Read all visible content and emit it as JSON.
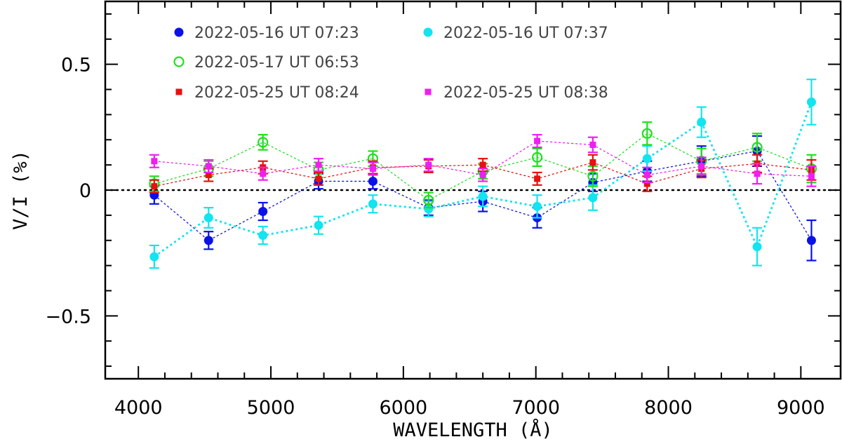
{
  "chart_data": {
    "type": "scatter",
    "xlabel": "WAVELENGTH (Å)",
    "ylabel": "V/I (%)",
    "xlim": [
      3750,
      9300
    ],
    "ylim": [
      -0.75,
      0.75
    ],
    "x_ticks": [
      4000,
      5000,
      6000,
      7000,
      8000,
      9000
    ],
    "y_ticks": [
      -0.5,
      0,
      0.5
    ],
    "y_tick_labels": [
      "−0.5",
      "0",
      "0.5"
    ],
    "zero_line": true,
    "x": [
      4120,
      4530,
      4940,
      5360,
      5770,
      6190,
      6600,
      7010,
      7430,
      7840,
      8250,
      8670,
      9080
    ],
    "series": [
      {
        "name": "2022-05-16 UT 07:23",
        "color": "#0a12e8",
        "marker": "filled-circle",
        "y": [
          -0.02,
          -0.2,
          -0.085,
          0.035,
          0.035,
          -0.07,
          -0.045,
          -0.11,
          0.03,
          0.075,
          0.115,
          0.155,
          -0.2
        ],
        "err": [
          0.035,
          0.035,
          0.035,
          0.03,
          0.03,
          0.03,
          0.04,
          0.04,
          0.035,
          0.04,
          0.06,
          0.06,
          0.08
        ]
      },
      {
        "name": "2022-05-16 UT 07:37",
        "color": "#12e4f0",
        "marker": "filled-circle",
        "y": [
          -0.265,
          -0.11,
          -0.18,
          -0.14,
          -0.055,
          -0.075,
          -0.025,
          -0.065,
          -0.03,
          0.125,
          0.27,
          -0.225,
          0.35
        ],
        "err": [
          0.045,
          0.04,
          0.035,
          0.035,
          0.035,
          0.03,
          0.04,
          0.045,
          0.05,
          0.05,
          0.06,
          0.075,
          0.09
        ]
      },
      {
        "name": "2022-05-17 UT 06:53",
        "color": "#1ee01e",
        "marker": "open-circle",
        "y": [
          0.025,
          0.085,
          0.19,
          0.08,
          0.125,
          -0.04,
          0.075,
          0.13,
          0.055,
          0.225,
          0.115,
          0.17,
          0.085
        ],
        "err": [
          0.03,
          0.03,
          0.03,
          0.03,
          0.03,
          0.03,
          0.03,
          0.035,
          0.04,
          0.045,
          0.05,
          0.055,
          0.055
        ]
      },
      {
        "name": "2022-05-25 UT 08:24",
        "color": "#e81010",
        "marker": "filled-square",
        "y": [
          0.015,
          0.06,
          0.09,
          0.045,
          0.09,
          0.095,
          0.1,
          0.045,
          0.11,
          0.025,
          0.085,
          0.105,
          0.08
        ],
        "err": [
          0.025,
          0.025,
          0.025,
          0.025,
          0.025,
          0.025,
          0.025,
          0.025,
          0.03,
          0.03,
          0.035,
          0.035,
          0.04
        ]
      },
      {
        "name": "2022-05-25 UT 08:38",
        "color": "#f01ef0",
        "marker": "filled-square",
        "y": [
          0.115,
          0.095,
          0.065,
          0.1,
          0.085,
          0.1,
          0.06,
          0.195,
          0.18,
          0.06,
          0.095,
          0.065,
          0.055
        ],
        "err": [
          0.025,
          0.025,
          0.025,
          0.025,
          0.025,
          0.025,
          0.025,
          0.025,
          0.03,
          0.03,
          0.035,
          0.04,
          0.04
        ]
      }
    ],
    "legend_rows": [
      [
        "2022-05-16 UT 07:23",
        "2022-05-16 UT 07:37"
      ],
      [
        "2022-05-17 UT 06:53"
      ],
      [
        "2022-05-25 UT 08:24",
        "2022-05-25 UT 08:38"
      ]
    ],
    "legend_placement": "top-left"
  }
}
